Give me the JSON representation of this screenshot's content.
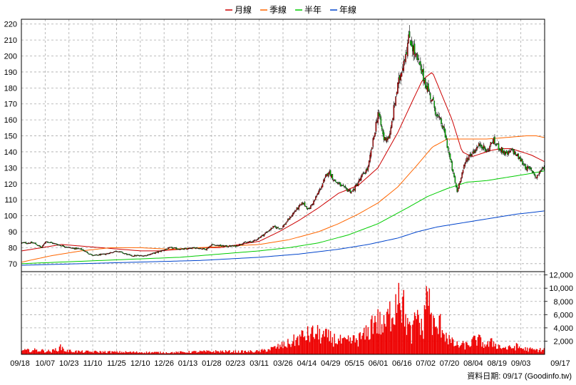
{
  "legend": [
    {
      "name": "月線",
      "color": "#cc0000"
    },
    {
      "name": "季線",
      "color": "#ff6600"
    },
    {
      "name": "半年",
      "color": "#00cc00"
    },
    {
      "name": "年線",
      "color": "#0044cc"
    }
  ],
  "footer": {
    "data_date": "資料日期: 09/17  (Goodinfo.tw)"
  },
  "chart_data": [
    {
      "type": "candlestick",
      "title": "",
      "ylim": [
        65,
        223
      ],
      "yticks": [
        70,
        80,
        90,
        100,
        110,
        120,
        130,
        140,
        150,
        160,
        170,
        180,
        190,
        200,
        210,
        220
      ],
      "x_tick_labels": [
        "09/18",
        "10/07",
        "10/23",
        "11/10",
        "11/25",
        "12/10",
        "12/26",
        "01/13",
        "01/28",
        "02/23",
        "03/11",
        "03/26",
        "04/14",
        "04/29",
        "05/15",
        "06/01",
        "06/16",
        "07/02",
        "07/20",
        "08/04",
        "08/19",
        "09/03",
        "09/17"
      ],
      "up_color": "#cc0000",
      "down_color": "#00cc00",
      "grid": true,
      "close_keypoints": [
        [
          0,
          83
        ],
        [
          12,
          83
        ],
        [
          20,
          80
        ],
        [
          24,
          84
        ],
        [
          36,
          82
        ],
        [
          48,
          80
        ],
        [
          60,
          79
        ],
        [
          72,
          75
        ],
        [
          84,
          76
        ],
        [
          96,
          78
        ],
        [
          110,
          75
        ],
        [
          124,
          75
        ],
        [
          136,
          77
        ],
        [
          150,
          80
        ],
        [
          162,
          79
        ],
        [
          176,
          80
        ],
        [
          186,
          79
        ],
        [
          192,
          82
        ],
        [
          204,
          81
        ],
        [
          216,
          81
        ],
        [
          224,
          83
        ],
        [
          234,
          84
        ],
        [
          244,
          88
        ],
        [
          254,
          93
        ],
        [
          262,
          92
        ],
        [
          270,
          98
        ],
        [
          276,
          103
        ],
        [
          284,
          108
        ],
        [
          290,
          104
        ],
        [
          296,
          110
        ],
        [
          304,
          120
        ],
        [
          310,
          128
        ],
        [
          316,
          122
        ],
        [
          326,
          117
        ],
        [
          334,
          115
        ],
        [
          344,
          125
        ],
        [
          350,
          130
        ],
        [
          356,
          150
        ],
        [
          360,
          165
        ],
        [
          366,
          148
        ],
        [
          372,
          150
        ],
        [
          378,
          175
        ],
        [
          386,
          198
        ],
        [
          392,
          212
        ],
        [
          398,
          200
        ],
        [
          404,
          190
        ],
        [
          410,
          180
        ],
        [
          416,
          170
        ],
        [
          420,
          162
        ],
        [
          424,
          158
        ],
        [
          428,
          150
        ],
        [
          434,
          132
        ],
        [
          440,
          115
        ],
        [
          444,
          125
        ],
        [
          450,
          136
        ],
        [
          456,
          140
        ],
        [
          464,
          145
        ],
        [
          470,
          140
        ],
        [
          476,
          147
        ],
        [
          482,
          143
        ],
        [
          490,
          138
        ],
        [
          496,
          141
        ],
        [
          504,
          135
        ],
        [
          510,
          130
        ],
        [
          516,
          128
        ],
        [
          520,
          124
        ],
        [
          524,
          128
        ],
        [
          528,
          130
        ]
      ],
      "ma_series": [
        {
          "name": "月線",
          "color": "#cc0000",
          "points": [
            [
              0,
              78
            ],
            [
              20,
              80
            ],
            [
              40,
              82
            ],
            [
              60,
              81
            ],
            [
              80,
              80
            ],
            [
              100,
              79
            ],
            [
              120,
              78
            ],
            [
              140,
              78
            ],
            [
              160,
              79
            ],
            [
              180,
              80
            ],
            [
              200,
              80
            ],
            [
              220,
              82
            ],
            [
              240,
              84
            ],
            [
              260,
              90
            ],
            [
              280,
              97
            ],
            [
              300,
              105
            ],
            [
              320,
              114
            ],
            [
              340,
              119
            ],
            [
              360,
              130
            ],
            [
              380,
              152
            ],
            [
              395,
              172
            ],
            [
              405,
              185
            ],
            [
              415,
              190
            ],
            [
              425,
              175
            ],
            [
              435,
              160
            ],
            [
              445,
              140
            ],
            [
              455,
              137
            ],
            [
              465,
              139
            ],
            [
              475,
              141
            ],
            [
              485,
              142
            ],
            [
              495,
              142
            ],
            [
              505,
              140
            ],
            [
              515,
              138
            ],
            [
              528,
              134
            ]
          ]
        },
        {
          "name": "季線",
          "color": "#ff6600",
          "points": [
            [
              0,
              71
            ],
            [
              30,
              75
            ],
            [
              60,
              78
            ],
            [
              90,
              80
            ],
            [
              120,
              80
            ],
            [
              150,
              79
            ],
            [
              180,
              80
            ],
            [
              210,
              81
            ],
            [
              240,
              82
            ],
            [
              270,
              85
            ],
            [
              300,
              90
            ],
            [
              320,
              95
            ],
            [
              340,
              101
            ],
            [
              360,
              108
            ],
            [
              380,
              118
            ],
            [
              400,
              132
            ],
            [
              415,
              143
            ],
            [
              430,
              148
            ],
            [
              450,
              148
            ],
            [
              470,
              148
            ],
            [
              490,
              149
            ],
            [
              510,
              150
            ],
            [
              520,
              150
            ],
            [
              528,
              149
            ]
          ]
        },
        {
          "name": "半年",
          "color": "#00cc00",
          "points": [
            [
              0,
              70
            ],
            [
              40,
              71
            ],
            [
              80,
              72
            ],
            [
              120,
              73
            ],
            [
              160,
              74
            ],
            [
              200,
              76
            ],
            [
              240,
              78
            ],
            [
              270,
              80
            ],
            [
              300,
              83
            ],
            [
              330,
              88
            ],
            [
              360,
              95
            ],
            [
              390,
              105
            ],
            [
              410,
              112
            ],
            [
              430,
              117
            ],
            [
              450,
              121
            ],
            [
              470,
              122
            ],
            [
              490,
              124
            ],
            [
              510,
              126
            ],
            [
              528,
              128
            ]
          ]
        },
        {
          "name": "年線",
          "color": "#0044cc",
          "points": [
            [
              0,
              69
            ],
            [
              60,
              70
            ],
            [
              120,
              71
            ],
            [
              180,
              72
            ],
            [
              240,
              74
            ],
            [
              280,
              76
            ],
            [
              320,
              79
            ],
            [
              350,
              82
            ],
            [
              380,
              86
            ],
            [
              400,
              90
            ],
            [
              420,
              93
            ],
            [
              440,
              95
            ],
            [
              460,
              97
            ],
            [
              480,
              99
            ],
            [
              500,
              101
            ],
            [
              515,
              102
            ],
            [
              528,
              103
            ]
          ]
        }
      ]
    },
    {
      "type": "bar",
      "title": "",
      "ylim": [
        0,
        12500
      ],
      "yticks": [
        2000,
        4000,
        6000,
        8000,
        10000,
        12000
      ],
      "ytick_labels": [
        "2,000",
        "4,000",
        "6,000",
        "8,000",
        "10,000",
        "12,000"
      ],
      "color": "#ee0000",
      "volume_keypoints": [
        [
          0,
          600
        ],
        [
          15,
          700
        ],
        [
          30,
          500
        ],
        [
          40,
          1200
        ],
        [
          44,
          600
        ],
        [
          60,
          450
        ],
        [
          90,
          400
        ],
        [
          120,
          350
        ],
        [
          150,
          300
        ],
        [
          180,
          450
        ],
        [
          200,
          500
        ],
        [
          220,
          450
        ],
        [
          240,
          500
        ],
        [
          254,
          1000
        ],
        [
          270,
          1800
        ],
        [
          284,
          3000
        ],
        [
          296,
          3500
        ],
        [
          310,
          2800
        ],
        [
          326,
          2000
        ],
        [
          340,
          2500
        ],
        [
          350,
          3500
        ],
        [
          356,
          6000
        ],
        [
          366,
          4500
        ],
        [
          376,
          8000
        ],
        [
          382,
          10500
        ],
        [
          388,
          6000
        ],
        [
          394,
          3000
        ],
        [
          400,
          7000
        ],
        [
          405,
          3500
        ],
        [
          410,
          10500
        ],
        [
          414,
          6000
        ],
        [
          418,
          4000
        ],
        [
          424,
          5000
        ],
        [
          428,
          3500
        ],
        [
          434,
          2000
        ],
        [
          440,
          1500
        ],
        [
          450,
          1500
        ],
        [
          460,
          2500
        ],
        [
          470,
          1500
        ],
        [
          476,
          2000
        ],
        [
          484,
          1200
        ],
        [
          492,
          1000
        ],
        [
          500,
          1300
        ],
        [
          508,
          900
        ],
        [
          514,
          800
        ],
        [
          520,
          700
        ],
        [
          528,
          800
        ]
      ],
      "peaks": [
        [
          381,
          10800
        ],
        [
          409,
          10300
        ]
      ]
    }
  ]
}
